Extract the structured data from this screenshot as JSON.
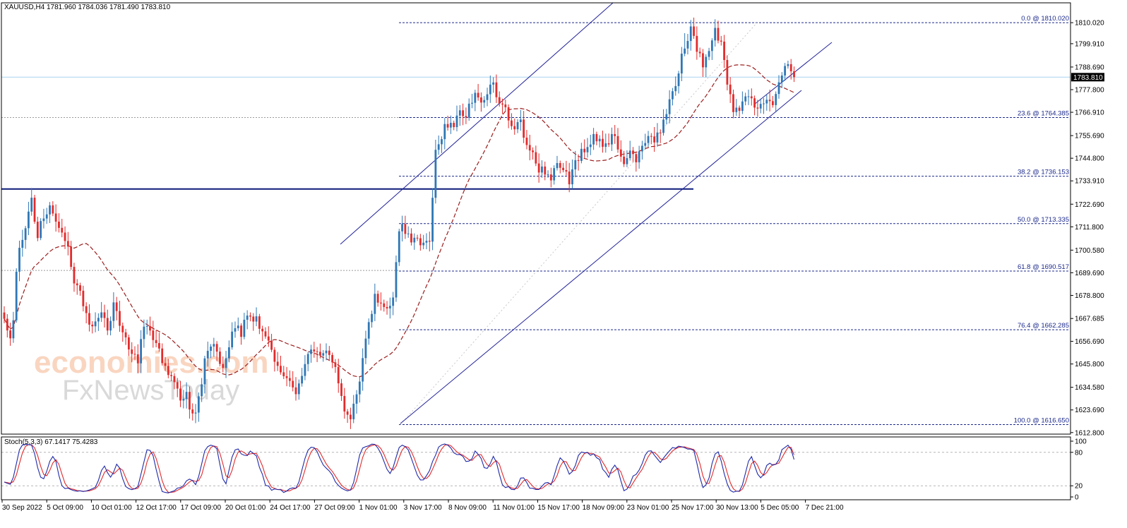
{
  "chart_title": {
    "symbol_tf": "XAUUSD,H4",
    "ohlc": "1781.960 1784.036 1781.490 1783.810"
  },
  "watermark": {
    "line1": "economies.com",
    "line2": "FxNewsToday"
  },
  "colors": {
    "bull": "#2f77b5",
    "bear": "#e22b2b",
    "ma": "#9c1d1d",
    "channel": "#23239a",
    "fib": "#1c2a8c",
    "support": "#0b1a7a",
    "stoch_main": "#1f2aa8",
    "stoch_signal": "#e22b2b"
  },
  "chart_data": [
    {
      "type": "candlestick",
      "timeframe": "H4",
      "ylim": [
        1612.8,
        1815.5
      ],
      "price_ticks": [
        1810.02,
        1799.91,
        1788.69,
        1777.8,
        1766.91,
        1755.69,
        1744.8,
        1733.91,
        1722.69,
        1711.8,
        1700.58,
        1689.69,
        1678.8,
        1667.685,
        1656.69,
        1645.8,
        1634.58,
        1623.69,
        1612.8
      ],
      "x_labels": [
        "30 Sep 2022",
        "5 Oct 09:00",
        "10 Oct 01:00",
        "12 Oct 17:00",
        "17 Oct 09:00",
        "20 Oct 01:00",
        "24 Oct 17:00",
        "27 Oct 09:00",
        "1 Nov 01:00",
        "3 Nov 17:00",
        "8 Nov 09:00",
        "11 Nov 01:00",
        "15 Nov 17:00",
        "18 Nov 09:00",
        "23 Nov 01:00",
        "25 Nov 17:00",
        "30 Nov 13:00",
        "5 Dec 05:00",
        "7 Dec 21:00"
      ],
      "current_price": "1783.810",
      "fibonacci": [
        {
          "label": "0.0 @ 1810.020",
          "price": 1810.02
        },
        {
          "label": "23.6 @ 1764.385",
          "price": 1764.385
        },
        {
          "label": "38.2 @ 1736.153",
          "price": 1736.153
        },
        {
          "label": "50.0 @ 1713.335",
          "price": 1713.335
        },
        {
          "label": "61.8 @ 1690.517",
          "price": 1690.517
        },
        {
          "label": "76.4 @ 1662.285",
          "price": 1662.285
        },
        {
          "label": "100.0 @ 1616.650",
          "price": 1616.65
        }
      ],
      "support_level": 1730.0,
      "anchors": [
        [
          0,
          1670
        ],
        [
          1,
          1660
        ],
        [
          2,
          1658
        ],
        [
          3,
          1668
        ],
        [
          4,
          1690
        ],
        [
          5,
          1700
        ],
        [
          7,
          1712
        ],
        [
          9,
          1726
        ],
        [
          11,
          1707
        ],
        [
          13,
          1718
        ],
        [
          15,
          1722
        ],
        [
          17,
          1712
        ],
        [
          19,
          1710
        ],
        [
          21,
          1700
        ],
        [
          23,
          1686
        ],
        [
          25,
          1680
        ],
        [
          27,
          1670
        ],
        [
          29,
          1662
        ],
        [
          32,
          1672
        ],
        [
          34,
          1662
        ],
        [
          36,
          1675
        ],
        [
          38,
          1664
        ],
        [
          40,
          1658
        ],
        [
          42,
          1650
        ],
        [
          44,
          1648
        ],
        [
          46,
          1664
        ],
        [
          48,
          1660
        ],
        [
          50,
          1655
        ],
        [
          52,
          1648
        ],
        [
          54,
          1640
        ],
        [
          56,
          1636
        ],
        [
          58,
          1628
        ],
        [
          60,
          1630
        ],
        [
          62,
          1620
        ],
        [
          64,
          1628
        ],
        [
          66,
          1648
        ],
        [
          68,
          1656
        ],
        [
          70,
          1652
        ],
        [
          72,
          1642
        ],
        [
          74,
          1654
        ],
        [
          76,
          1664
        ],
        [
          78,
          1660
        ],
        [
          80,
          1670
        ],
        [
          82,
          1668
        ],
        [
          84,
          1665
        ],
        [
          86,
          1660
        ],
        [
          88,
          1652
        ],
        [
          90,
          1645
        ],
        [
          92,
          1640
        ],
        [
          94,
          1636
        ],
        [
          96,
          1632
        ],
        [
          98,
          1638
        ],
        [
          100,
          1650
        ],
        [
          102,
          1654
        ],
        [
          104,
          1648
        ],
        [
          106,
          1652
        ],
        [
          108,
          1646
        ],
        [
          110,
          1638
        ],
        [
          112,
          1622
        ],
        [
          114,
          1619
        ],
        [
          116,
          1630
        ],
        [
          118,
          1648
        ],
        [
          120,
          1665
        ],
        [
          122,
          1678
        ],
        [
          124,
          1676
        ],
        [
          126,
          1672
        ],
        [
          128,
          1680
        ],
        [
          130,
          1712
        ],
        [
          132,
          1710
        ],
        [
          134,
          1706
        ],
        [
          136,
          1708
        ],
        [
          138,
          1702
        ],
        [
          140,
          1705
        ],
        [
          142,
          1750
        ],
        [
          144,
          1756
        ],
        [
          146,
          1762
        ],
        [
          148,
          1760
        ],
        [
          150,
          1768
        ],
        [
          152,
          1766
        ],
        [
          154,
          1772
        ],
        [
          156,
          1776
        ],
        [
          158,
          1772
        ],
        [
          160,
          1782
        ],
        [
          162,
          1776
        ],
        [
          164,
          1770
        ],
        [
          166,
          1764
        ],
        [
          168,
          1760
        ],
        [
          170,
          1762
        ],
        [
          172,
          1752
        ],
        [
          174,
          1746
        ],
        [
          176,
          1740
        ],
        [
          178,
          1738
        ],
        [
          180,
          1736
        ],
        [
          182,
          1742
        ],
        [
          184,
          1740
        ],
        [
          186,
          1734
        ],
        [
          188,
          1742
        ],
        [
          190,
          1748
        ],
        [
          192,
          1752
        ],
        [
          194,
          1754
        ],
        [
          196,
          1754
        ],
        [
          198,
          1750
        ],
        [
          200,
          1756
        ],
        [
          202,
          1750
        ],
        [
          204,
          1744
        ],
        [
          206,
          1748
        ],
        [
          208,
          1742
        ],
        [
          210,
          1750
        ],
        [
          212,
          1756
        ],
        [
          214,
          1752
        ],
        [
          216,
          1758
        ],
        [
          218,
          1768
        ],
        [
          220,
          1776
        ],
        [
          222,
          1788
        ],
        [
          224,
          1800
        ],
        [
          226,
          1806
        ],
        [
          228,
          1798
        ],
        [
          230,
          1790
        ],
        [
          232,
          1796
        ],
        [
          234,
          1806
        ],
        [
          236,
          1800
        ],
        [
          238,
          1780
        ],
        [
          240,
          1768
        ],
        [
          242,
          1770
        ],
        [
          244,
          1774
        ],
        [
          246,
          1772
        ],
        [
          248,
          1770
        ],
        [
          250,
          1772
        ],
        [
          252,
          1770
        ],
        [
          254,
          1774
        ],
        [
          256,
          1786
        ],
        [
          258,
          1788
        ],
        [
          260,
          1783.81
        ]
      ]
    },
    {
      "type": "line",
      "name": "Stoch(5,3,3) 67.1417 75.4283",
      "series": [
        {
          "name": "main",
          "value": 67.1417
        },
        {
          "name": "signal",
          "value": 75.4283
        }
      ],
      "ylim": [
        0,
        100
      ],
      "ticks": [
        100,
        80,
        20,
        0
      ],
      "levels": [
        80,
        20
      ]
    }
  ]
}
